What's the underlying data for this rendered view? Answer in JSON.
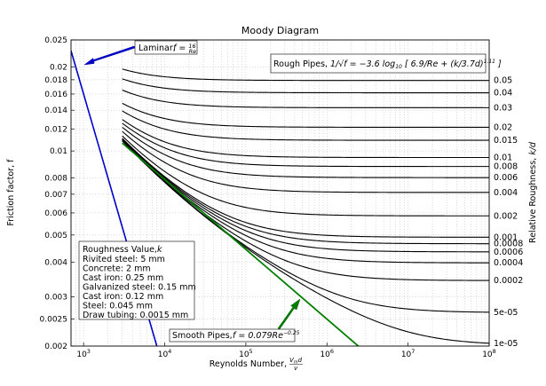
{
  "chart_data": {
    "type": "line",
    "title": "Moody Diagram",
    "xlabel": "Reynolds Number, $\\frac{V_{m}d}{\\nu}$",
    "xlabel_plain": "Reynolds Number,",
    "ylabel": "Friction factor, f",
    "y2label": "Relative Roughness, k/d",
    "xscale": "log",
    "yscale": "log",
    "xlim": [
      700,
      100000000
    ],
    "ylim": [
      0.002,
      0.025
    ],
    "grid": true,
    "x_ticks": [
      {
        "value": 1000,
        "label": "10",
        "exp": "3"
      },
      {
        "value": 10000,
        "label": "10",
        "exp": "4"
      },
      {
        "value": 100000,
        "label": "10",
        "exp": "5"
      },
      {
        "value": 1000000,
        "label": "10",
        "exp": "6"
      },
      {
        "value": 10000000,
        "label": "10",
        "exp": "7"
      },
      {
        "value": 100000000,
        "label": "10",
        "exp": "8"
      }
    ],
    "y_ticks": [
      {
        "value": 0.025,
        "label": "0.025"
      },
      {
        "value": 0.02,
        "label": "0.02"
      },
      {
        "value": 0.018,
        "label": "0.018"
      },
      {
        "value": 0.016,
        "label": "0.016"
      },
      {
        "value": 0.014,
        "label": "0.014"
      },
      {
        "value": 0.012,
        "label": "0.012"
      },
      {
        "value": 0.01,
        "label": "0.01"
      },
      {
        "value": 0.008,
        "label": "0.008"
      },
      {
        "value": 0.007,
        "label": "0.007"
      },
      {
        "value": 0.006,
        "label": "0.006"
      },
      {
        "value": 0.005,
        "label": "0.005"
      },
      {
        "value": 0.004,
        "label": "0.004"
      },
      {
        "value": 0.003,
        "label": "0.003"
      },
      {
        "value": 0.0025,
        "label": "0.0025"
      },
      {
        "value": 0.002,
        "label": "0.002"
      }
    ],
    "roughness_series": [
      {
        "name": "0.05",
        "kd": 0.05
      },
      {
        "name": "0.04",
        "kd": 0.04
      },
      {
        "name": "0.03",
        "kd": 0.03
      },
      {
        "name": "0.02",
        "kd": 0.02
      },
      {
        "name": "0.015",
        "kd": 0.015
      },
      {
        "name": "0.01",
        "kd": 0.01
      },
      {
        "name": "0.008",
        "kd": 0.008
      },
      {
        "name": "0.006",
        "kd": 0.006
      },
      {
        "name": "0.004",
        "kd": 0.004
      },
      {
        "name": "0.002",
        "kd": 0.002
      },
      {
        "name": "0.001",
        "kd": 0.001
      },
      {
        "name": "0.0008",
        "kd": 0.0008
      },
      {
        "name": "0.0006",
        "kd": 0.0006
      },
      {
        "name": "0.0004",
        "kd": 0.0004
      },
      {
        "name": "0.0002",
        "kd": 0.0002
      },
      {
        "name": "5e-05",
        "kd": 5e-05
      },
      {
        "name": "1e-05",
        "kd": 1e-05
      }
    ],
    "roughness_re_range": [
      3000,
      100000000
    ],
    "laminar": {
      "name": "Laminar",
      "formula": "f = 16/Re",
      "color": "#0000cc",
      "x_range": [
        700,
        8000
      ]
    },
    "smooth": {
      "name": "Smooth Pipes",
      "formula": "f = 0.079 Re^-0.25",
      "color": "#007f00",
      "x_range": [
        3000,
        2700000
      ]
    },
    "roughness_color": "#000000",
    "annotations": {
      "laminar_label": "Laminar,",
      "rough_label": "Rough Pipes,",
      "smooth_label": "Smooth Pipes,",
      "roughness_box_title": "Roughness Value,",
      "roughness_box_lines": [
        "Rivited steel: 5 mm",
        "Concrete: 2 mm",
        "Cast iron: 0.25 mm",
        "Galvanized steel: 0.15 mm",
        "Cast iron: 0.12 mm",
        "Steel: 0.045 mm",
        "Draw tubing: 0.0015 mm"
      ]
    }
  }
}
